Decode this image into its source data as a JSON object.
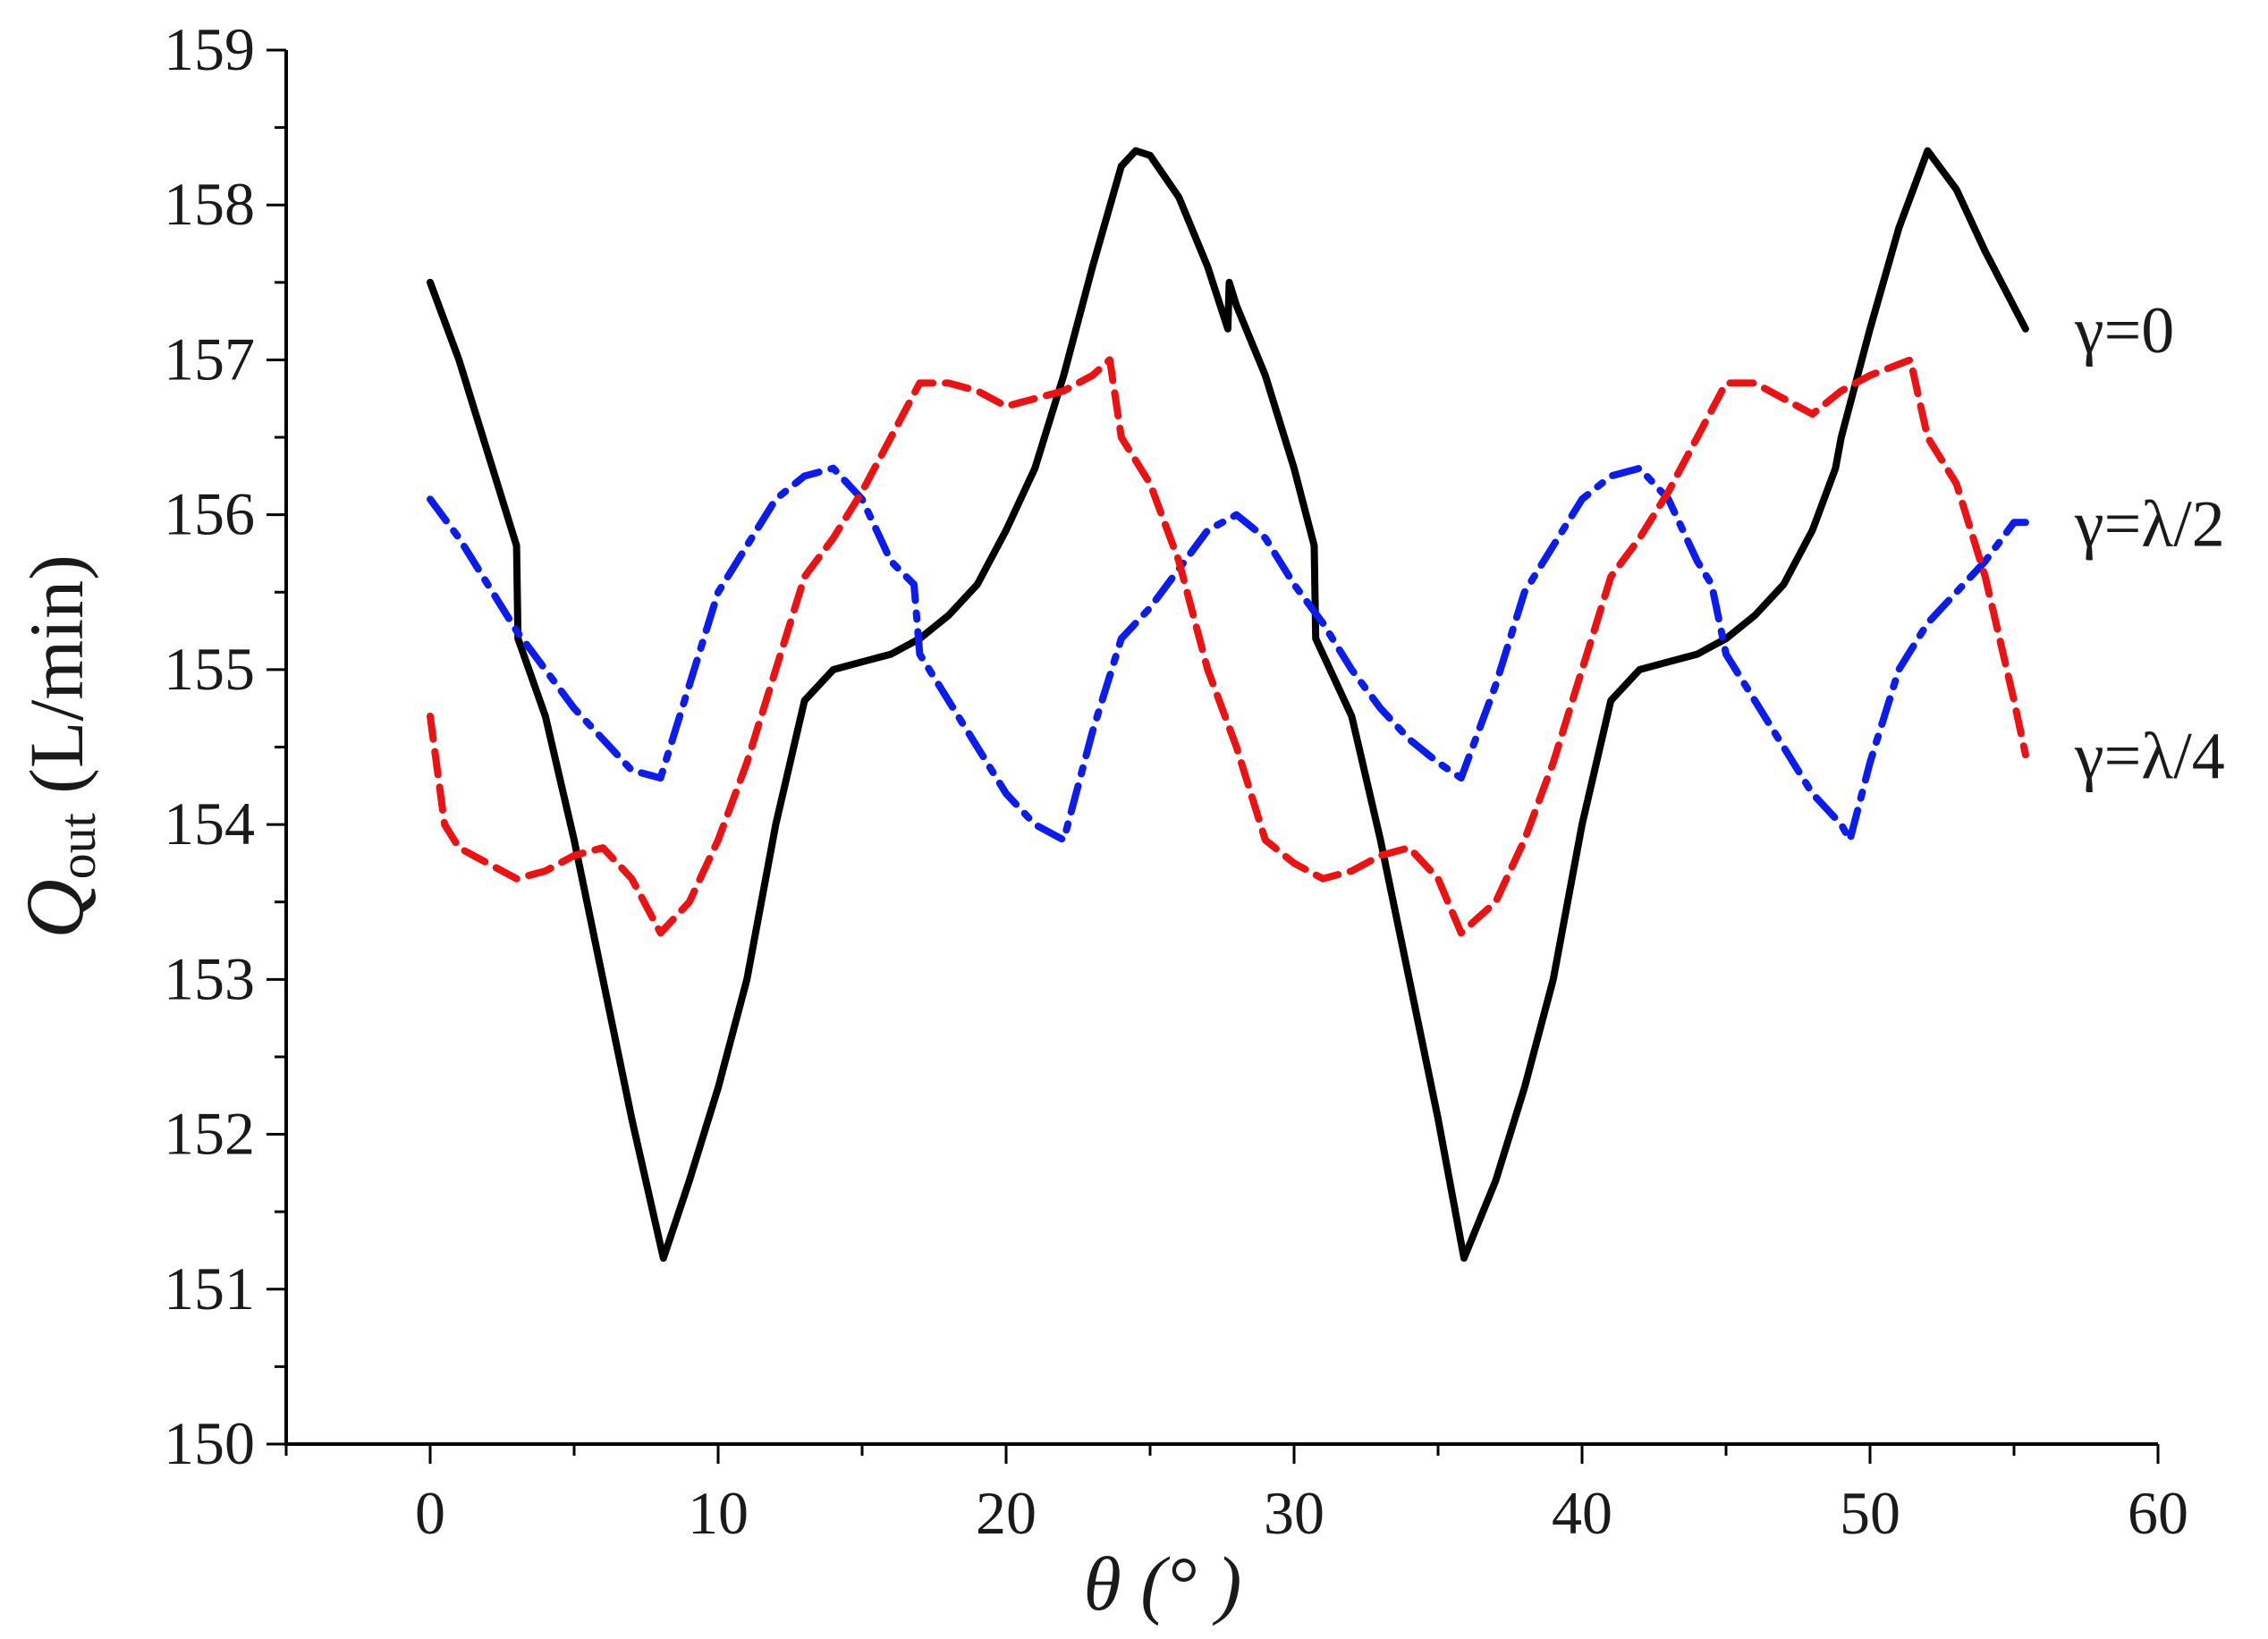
{
  "chart_data": {
    "type": "line",
    "title": "",
    "xlabel": "θ (°  )",
    "ylabel_main": "Q",
    "ylabel_sub": "out",
    "ylabel_unit": " (L/min)",
    "xlim": [
      -5,
      60
    ],
    "ylim": [
      150,
      159
    ],
    "xticks": [
      0,
      10,
      20,
      30,
      40,
      50,
      60
    ],
    "yticks": [
      150,
      151,
      152,
      153,
      154,
      155,
      156,
      157,
      158,
      159
    ],
    "xtick_labels": [
      "0",
      "10",
      "20",
      "30",
      "40",
      "50",
      "60"
    ],
    "ytick_labels": [
      "150",
      "151",
      "152",
      "153",
      "154",
      "155",
      "156",
      "157",
      "158",
      "159"
    ],
    "grid": false,
    "series": [
      {
        "name": "γ=0",
        "color": "#000000",
        "style": "solid",
        "points": [
          [
            0,
            157.5
          ],
          [
            1,
            157.0
          ],
          [
            2,
            156.4
          ],
          [
            3,
            155.8
          ],
          [
            3.05,
            155.2
          ],
          [
            4,
            154.7
          ],
          [
            5,
            153.9
          ],
          [
            6,
            153.0
          ],
          [
            7,
            152.1
          ],
          [
            8.1,
            151.2
          ],
          [
            9,
            151.7
          ],
          [
            10,
            152.3
          ],
          [
            11,
            153.0
          ],
          [
            12,
            154.0
          ],
          [
            13,
            154.8
          ],
          [
            14,
            155.0
          ],
          [
            15,
            155.05
          ],
          [
            16,
            155.1
          ],
          [
            17,
            155.2
          ],
          [
            18,
            155.35
          ],
          [
            19,
            155.55
          ],
          [
            20,
            155.9
          ],
          [
            21,
            156.3
          ],
          [
            22,
            156.9
          ],
          [
            23,
            157.6
          ],
          [
            24,
            158.25
          ],
          [
            24.5,
            158.35
          ],
          [
            25,
            158.32
          ],
          [
            26,
            158.05
          ],
          [
            27,
            157.6
          ],
          [
            27.7,
            157.2
          ],
          [
            27.75,
            157.5
          ],
          [
            28,
            157.35
          ],
          [
            29,
            156.9
          ],
          [
            30,
            156.3
          ],
          [
            30.7,
            155.8
          ],
          [
            30.75,
            155.2
          ],
          [
            32,
            154.7
          ],
          [
            33,
            153.9
          ],
          [
            34,
            153.0
          ],
          [
            35,
            152.1
          ],
          [
            35.9,
            151.2
          ],
          [
            37,
            151.7
          ],
          [
            38,
            152.3
          ],
          [
            39,
            153.0
          ],
          [
            40,
            154.0
          ],
          [
            41,
            154.8
          ],
          [
            42,
            155.0
          ],
          [
            43,
            155.05
          ],
          [
            44,
            155.1
          ],
          [
            45,
            155.2
          ],
          [
            46,
            155.35
          ],
          [
            47,
            155.55
          ],
          [
            48,
            155.9
          ],
          [
            48.8,
            156.3
          ],
          [
            49,
            156.5
          ],
          [
            50,
            157.2
          ],
          [
            51,
            157.85
          ],
          [
            52,
            158.35
          ],
          [
            53,
            158.1
          ],
          [
            54,
            157.7
          ],
          [
            55.4,
            157.2
          ]
        ]
      },
      {
        "name": "γ=λ/2",
        "color": "#0a1cf0",
        "style": "dashdot",
        "points": [
          [
            0,
            156.1
          ],
          [
            1,
            155.85
          ],
          [
            2,
            155.55
          ],
          [
            3,
            155.25
          ],
          [
            4,
            155.0
          ],
          [
            5,
            154.75
          ],
          [
            6,
            154.55
          ],
          [
            7,
            154.35
          ],
          [
            8,
            154.3
          ],
          [
            9,
            154.9
          ],
          [
            10,
            155.5
          ],
          [
            11,
            155.8
          ],
          [
            12,
            156.1
          ],
          [
            13,
            156.25
          ],
          [
            14,
            156.3
          ],
          [
            15,
            156.1
          ],
          [
            16,
            155.7
          ],
          [
            16.8,
            155.55
          ],
          [
            17,
            155.1
          ],
          [
            18,
            154.8
          ],
          [
            19,
            154.5
          ],
          [
            20,
            154.2
          ],
          [
            21,
            154.0
          ],
          [
            22,
            153.9
          ],
          [
            23,
            154.6
          ],
          [
            24,
            155.2
          ],
          [
            25,
            155.4
          ],
          [
            26,
            155.65
          ],
          [
            27,
            155.9
          ],
          [
            28,
            156.0
          ],
          [
            29,
            155.85
          ],
          [
            30,
            155.55
          ],
          [
            31,
            155.3
          ],
          [
            32,
            155.0
          ],
          [
            33,
            154.75
          ],
          [
            34,
            154.55
          ],
          [
            35,
            154.4
          ],
          [
            35.8,
            154.3
          ],
          [
            37,
            154.9
          ],
          [
            38,
            155.5
          ],
          [
            39,
            155.8
          ],
          [
            40,
            156.1
          ],
          [
            41,
            156.25
          ],
          [
            42,
            156.3
          ],
          [
            43,
            156.1
          ],
          [
            44,
            155.7
          ],
          [
            44.5,
            155.55
          ],
          [
            45,
            155.1
          ],
          [
            46,
            154.8
          ],
          [
            47,
            154.5
          ],
          [
            48,
            154.2
          ],
          [
            49,
            154.0
          ],
          [
            49.3,
            153.9
          ],
          [
            50,
            154.4
          ],
          [
            51,
            155.0
          ],
          [
            52,
            155.3
          ],
          [
            53,
            155.5
          ],
          [
            54,
            155.7
          ],
          [
            55,
            155.95
          ],
          [
            55.4,
            155.95
          ]
        ]
      },
      {
        "name": "γ=λ/4",
        "color": "#ee1111",
        "style": "dashed",
        "points": [
          [
            0,
            154.7
          ],
          [
            0.5,
            154.0
          ],
          [
            1,
            153.85
          ],
          [
            2,
            153.75
          ],
          [
            3,
            153.65
          ],
          [
            4,
            153.7
          ],
          [
            5,
            153.8
          ],
          [
            6,
            153.85
          ],
          [
            7,
            153.65
          ],
          [
            8,
            153.3
          ],
          [
            9,
            153.5
          ],
          [
            10,
            153.9
          ],
          [
            11,
            154.4
          ],
          [
            12,
            155.0
          ],
          [
            13,
            155.6
          ],
          [
            14,
            155.85
          ],
          [
            15,
            156.15
          ],
          [
            16,
            156.5
          ],
          [
            17,
            156.85
          ],
          [
            18,
            156.85
          ],
          [
            19,
            156.8
          ],
          [
            20,
            156.7
          ],
          [
            21,
            156.75
          ],
          [
            22,
            156.8
          ],
          [
            23,
            156.9
          ],
          [
            23.6,
            157.0
          ],
          [
            24,
            156.5
          ],
          [
            25,
            156.2
          ],
          [
            26,
            155.7
          ],
          [
            27,
            155.0
          ],
          [
            28,
            154.5
          ],
          [
            29,
            153.9
          ],
          [
            30,
            153.75
          ],
          [
            31,
            153.65
          ],
          [
            32,
            153.7
          ],
          [
            33,
            153.8
          ],
          [
            34,
            153.85
          ],
          [
            35,
            153.65
          ],
          [
            35.8,
            153.3
          ],
          [
            37,
            153.5
          ],
          [
            38,
            153.9
          ],
          [
            39,
            154.4
          ],
          [
            40,
            155.0
          ],
          [
            41,
            155.6
          ],
          [
            42,
            155.85
          ],
          [
            43,
            156.15
          ],
          [
            44,
            156.5
          ],
          [
            45,
            156.85
          ],
          [
            46,
            156.85
          ],
          [
            47,
            156.75
          ],
          [
            48,
            156.65
          ],
          [
            49,
            156.8
          ],
          [
            50,
            156.9
          ],
          [
            51.4,
            157.0
          ],
          [
            52,
            156.5
          ],
          [
            53,
            156.2
          ],
          [
            54,
            155.6
          ],
          [
            55,
            154.8
          ],
          [
            55.4,
            154.45
          ]
        ]
      }
    ]
  }
}
